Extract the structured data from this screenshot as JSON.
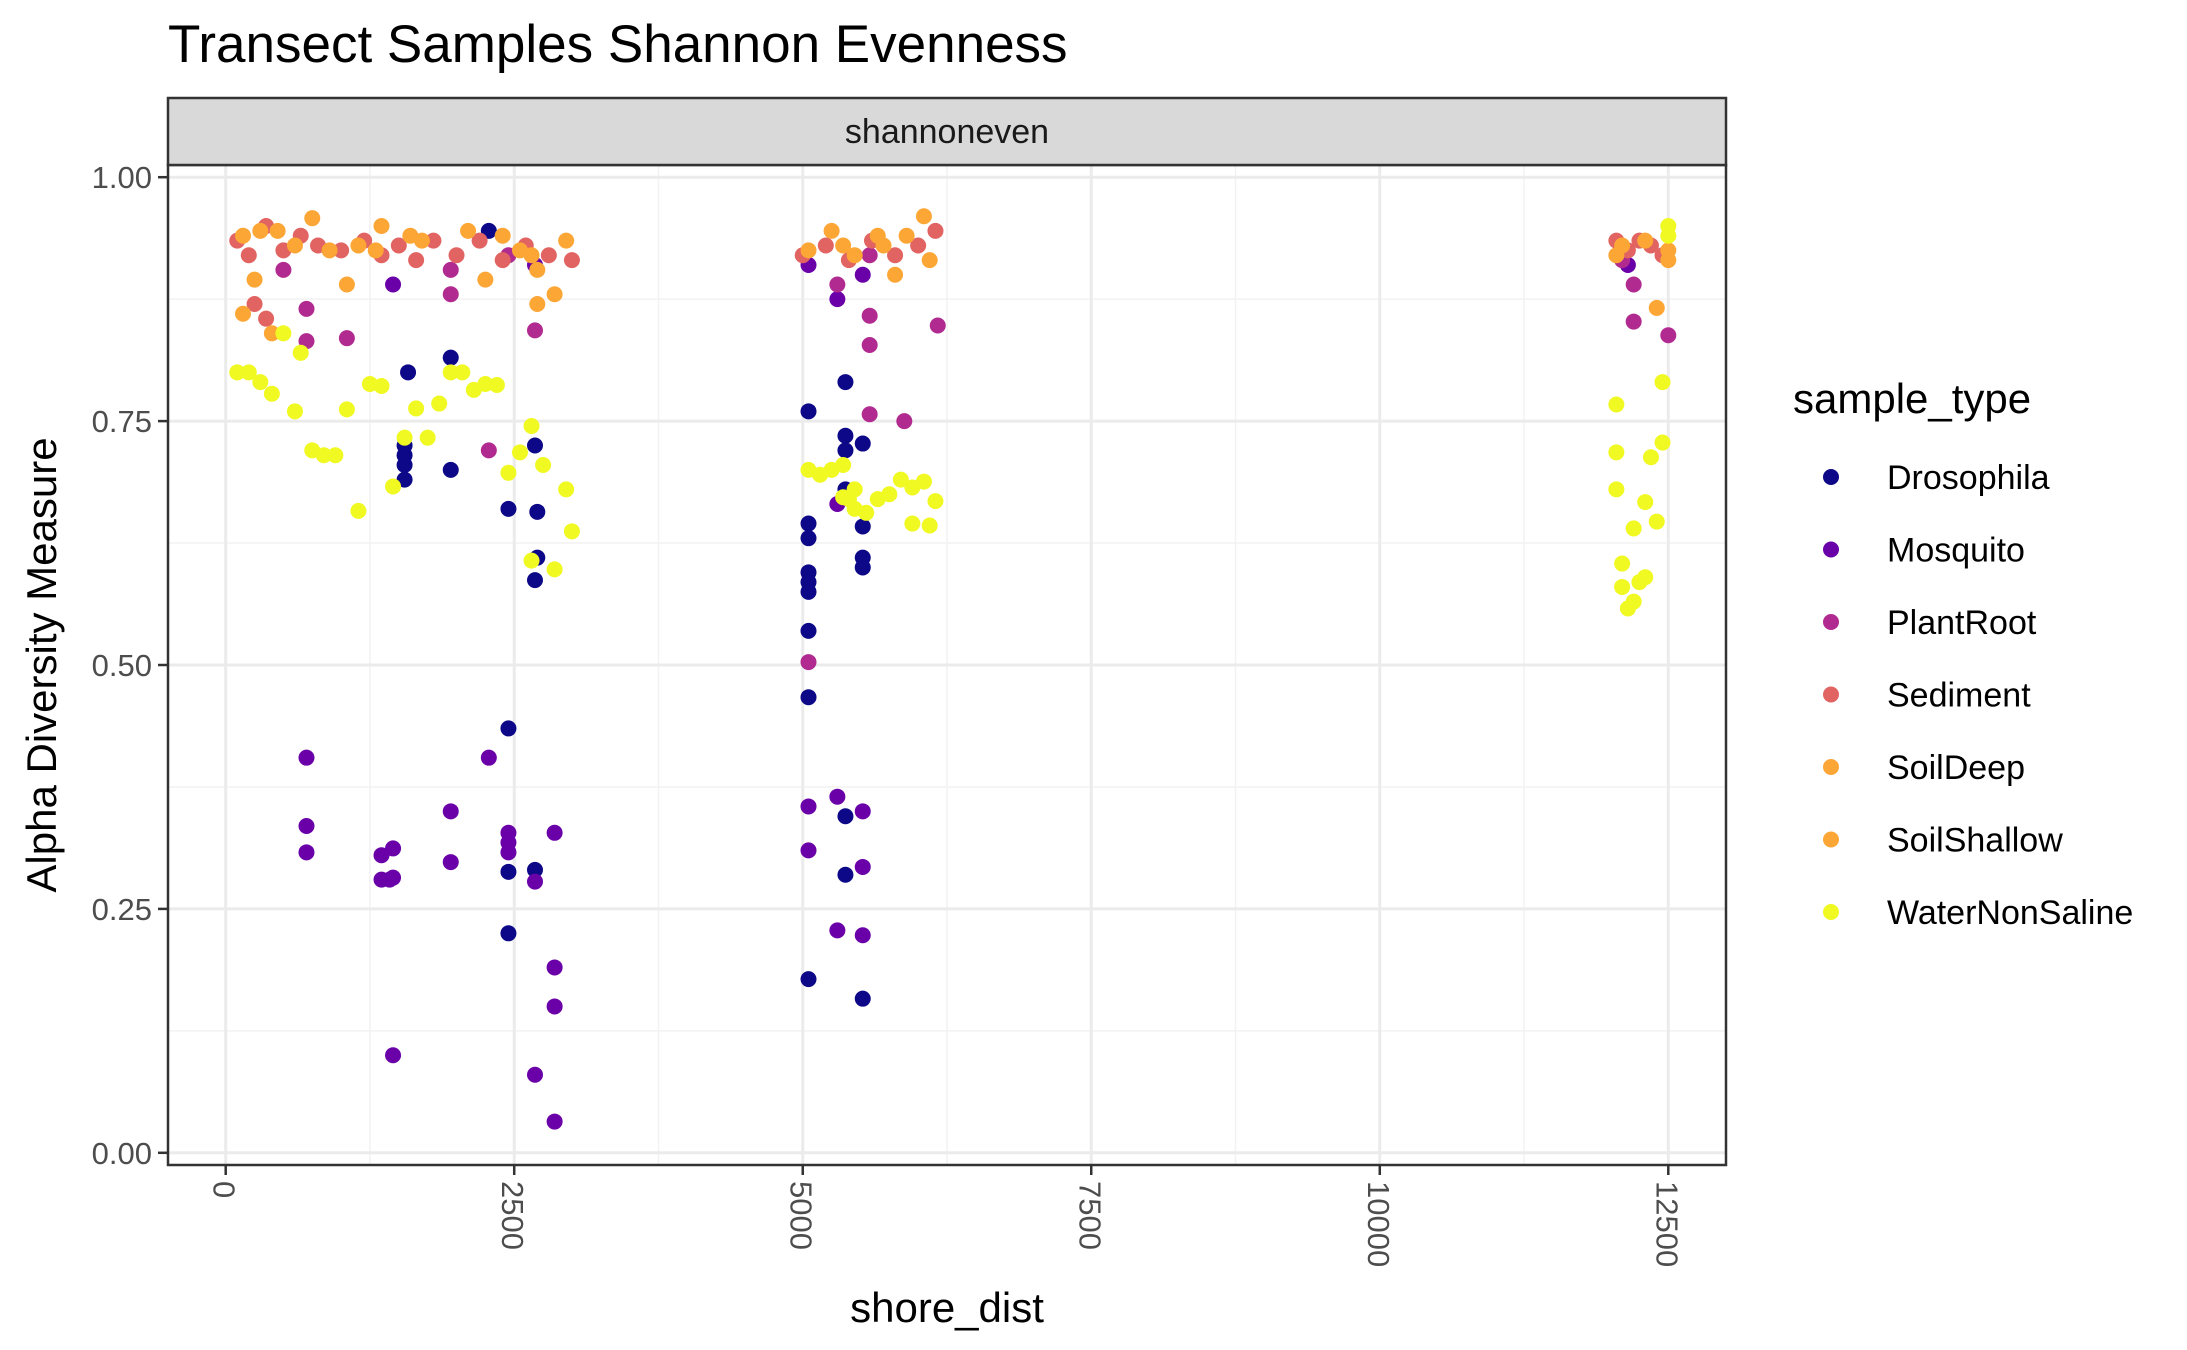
{
  "chart_data": {
    "type": "scatter",
    "title": "Transect Samples Shannon Evenness",
    "facet_label": "shannoneven",
    "xlabel": "shore_dist",
    "ylabel": "Alpha Diversity Measure",
    "xlim": [
      -500,
      13000
    ],
    "ylim": [
      -0.0125,
      1.0125
    ],
    "x_ticks": [
      0,
      2500,
      5000,
      7500,
      10000,
      12500
    ],
    "x_tick_labels": [
      "0",
      "2500",
      "5000",
      "7500",
      "10000",
      "12500"
    ],
    "y_ticks": [
      0,
      0.25,
      0.5,
      0.75,
      1.0
    ],
    "y_tick_labels": [
      "0.00",
      "0.25",
      "0.50",
      "0.75",
      "1.00"
    ],
    "grid": true,
    "legend": {
      "title": "sample_type",
      "position": "right"
    },
    "series": [
      {
        "name": "Drosophila",
        "color": "#0d0887",
        "points": [
          [
            1580,
            0.8
          ],
          [
            1950,
            0.815
          ],
          [
            1550,
            0.725
          ],
          [
            1550,
            0.715
          ],
          [
            1550,
            0.705
          ],
          [
            1550,
            0.69
          ],
          [
            1950,
            0.7
          ],
          [
            2450,
            0.66
          ],
          [
            2680,
            0.725
          ],
          [
            2700,
            0.657
          ],
          [
            2700,
            0.61
          ],
          [
            2680,
            0.587
          ],
          [
            2450,
            0.435
          ],
          [
            2450,
            0.288
          ],
          [
            2680,
            0.29
          ],
          [
            2450,
            0.225
          ],
          [
            5050,
            0.76
          ],
          [
            5050,
            0.645
          ],
          [
            5050,
            0.63
          ],
          [
            5050,
            0.595
          ],
          [
            5050,
            0.585
          ],
          [
            5050,
            0.575
          ],
          [
            5050,
            0.535
          ],
          [
            5050,
            0.467
          ],
          [
            5050,
            0.178
          ],
          [
            5370,
            0.79
          ],
          [
            5370,
            0.735
          ],
          [
            5370,
            0.72
          ],
          [
            5370,
            0.68
          ],
          [
            5520,
            0.727
          ],
          [
            5520,
            0.642
          ],
          [
            5520,
            0.61
          ],
          [
            5520,
            0.6
          ],
          [
            5370,
            0.345
          ],
          [
            5370,
            0.285
          ],
          [
            5520,
            0.158
          ],
          [
            2280,
            0.945
          ]
        ]
      },
      {
        "name": "Mosquito",
        "color": "#6a00a8",
        "points": [
          [
            700,
            0.405
          ],
          [
            700,
            0.335
          ],
          [
            700,
            0.308
          ],
          [
            1350,
            0.305
          ],
          [
            1350,
            0.28
          ],
          [
            1450,
            0.312
          ],
          [
            1450,
            0.282
          ],
          [
            1420,
            0.28
          ],
          [
            1450,
            0.1
          ],
          [
            1950,
            0.35
          ],
          [
            1950,
            0.298
          ],
          [
            2280,
            0.405
          ],
          [
            2450,
            0.328
          ],
          [
            2450,
            0.318
          ],
          [
            2450,
            0.308
          ],
          [
            2680,
            0.278
          ],
          [
            2850,
            0.328
          ],
          [
            2850,
            0.19
          ],
          [
            2850,
            0.15
          ],
          [
            2680,
            0.08
          ],
          [
            2850,
            0.032
          ],
          [
            5050,
            0.355
          ],
          [
            5050,
            0.31
          ],
          [
            5300,
            0.365
          ],
          [
            5300,
            0.228
          ],
          [
            5520,
            0.35
          ],
          [
            5520,
            0.293
          ],
          [
            5520,
            0.223
          ],
          [
            1450,
            0.89
          ],
          [
            2680,
            0.91
          ],
          [
            5050,
            0.91
          ],
          [
            5300,
            0.875
          ],
          [
            5520,
            0.9
          ],
          [
            5300,
            0.665
          ],
          [
            12150,
            0.91
          ]
        ]
      },
      {
        "name": "PlantRoot",
        "color": "#b12a90",
        "points": [
          [
            700,
            0.865
          ],
          [
            700,
            0.832
          ],
          [
            1050,
            0.835
          ],
          [
            1950,
            0.88
          ],
          [
            2680,
            0.843
          ],
          [
            2280,
            0.72
          ],
          [
            5050,
            0.503
          ],
          [
            5580,
            0.858
          ],
          [
            5580,
            0.828
          ],
          [
            5580,
            0.757
          ],
          [
            5880,
            0.75
          ],
          [
            6170,
            0.848
          ],
          [
            12200,
            0.852
          ],
          [
            12200,
            0.89
          ],
          [
            12500,
            0.838
          ],
          [
            500,
            0.905
          ],
          [
            1950,
            0.905
          ],
          [
            2450,
            0.92
          ],
          [
            5300,
            0.89
          ],
          [
            5580,
            0.92
          ],
          [
            12100,
            0.915
          ]
        ]
      },
      {
        "name": "Sediment",
        "color": "#e16462",
        "points": [
          [
            100,
            0.935
          ],
          [
            200,
            0.92
          ],
          [
            350,
            0.95
          ],
          [
            500,
            0.925
          ],
          [
            650,
            0.94
          ],
          [
            800,
            0.93
          ],
          [
            1000,
            0.925
          ],
          [
            1200,
            0.935
          ],
          [
            1350,
            0.92
          ],
          [
            1500,
            0.93
          ],
          [
            1650,
            0.915
          ],
          [
            1800,
            0.935
          ],
          [
            2000,
            0.92
          ],
          [
            2200,
            0.935
          ],
          [
            2400,
            0.915
          ],
          [
            2600,
            0.93
          ],
          [
            2800,
            0.92
          ],
          [
            3000,
            0.915
          ],
          [
            250,
            0.87
          ],
          [
            350,
            0.855
          ],
          [
            5000,
            0.92
          ],
          [
            5200,
            0.93
          ],
          [
            5400,
            0.915
          ],
          [
            5600,
            0.935
          ],
          [
            5800,
            0.92
          ],
          [
            6000,
            0.93
          ],
          [
            6150,
            0.945
          ],
          [
            12050,
            0.935
          ],
          [
            12150,
            0.925
          ],
          [
            12250,
            0.935
          ],
          [
            12350,
            0.93
          ],
          [
            12450,
            0.92
          ]
        ]
      },
      {
        "name": "SoilDeep",
        "color": "#fca636",
        "points": [
          [
            750,
            0.958
          ],
          [
            1350,
            0.95
          ],
          [
            250,
            0.895
          ],
          [
            1050,
            0.89
          ],
          [
            2250,
            0.895
          ],
          [
            2700,
            0.87
          ],
          [
            2850,
            0.88
          ],
          [
            150,
            0.86
          ],
          [
            5900,
            0.94
          ],
          [
            6100,
            0.915
          ],
          [
            5700,
            0.93
          ],
          [
            12400,
            0.866
          ],
          [
            12500,
            0.915
          ],
          [
            12100,
            0.93
          ],
          [
            450,
            0.945
          ],
          [
            1600,
            0.94
          ],
          [
            2550,
            0.925
          ],
          [
            5350,
            0.93
          ]
        ]
      },
      {
        "name": "SoilShallow",
        "color": "#fca636",
        "points": [
          [
            150,
            0.94
          ],
          [
            300,
            0.945
          ],
          [
            600,
            0.93
          ],
          [
            900,
            0.925
          ],
          [
            1150,
            0.93
          ],
          [
            1300,
            0.925
          ],
          [
            1700,
            0.935
          ],
          [
            2100,
            0.945
          ],
          [
            2400,
            0.94
          ],
          [
            2650,
            0.92
          ],
          [
            2950,
            0.935
          ],
          [
            400,
            0.84
          ],
          [
            2700,
            0.905
          ],
          [
            5050,
            0.925
          ],
          [
            5250,
            0.945
          ],
          [
            5450,
            0.92
          ],
          [
            5650,
            0.94
          ],
          [
            5800,
            0.9
          ],
          [
            6050,
            0.96
          ],
          [
            12050,
            0.92
          ],
          [
            12300,
            0.935
          ],
          [
            12500,
            0.925
          ]
        ]
      },
      {
        "name": "WaterNonSaline",
        "color": "#f0f921",
        "points": [
          [
            100,
            0.8
          ],
          [
            200,
            0.8
          ],
          [
            300,
            0.79
          ],
          [
            400,
            0.778
          ],
          [
            500,
            0.84
          ],
          [
            600,
            0.76
          ],
          [
            650,
            0.82
          ],
          [
            750,
            0.72
          ],
          [
            850,
            0.715
          ],
          [
            950,
            0.715
          ],
          [
            1050,
            0.762
          ],
          [
            1150,
            0.658
          ],
          [
            1250,
            0.788
          ],
          [
            1350,
            0.786
          ],
          [
            1450,
            0.683
          ],
          [
            1550,
            0.733
          ],
          [
            1650,
            0.763
          ],
          [
            1750,
            0.733
          ],
          [
            1850,
            0.768
          ],
          [
            1950,
            0.8
          ],
          [
            2050,
            0.8
          ],
          [
            2150,
            0.782
          ],
          [
            2250,
            0.788
          ],
          [
            2350,
            0.787
          ],
          [
            2450,
            0.697
          ],
          [
            2550,
            0.718
          ],
          [
            2650,
            0.745
          ],
          [
            2750,
            0.705
          ],
          [
            2850,
            0.598
          ],
          [
            2950,
            0.68
          ],
          [
            3000,
            0.637
          ],
          [
            2650,
            0.607
          ],
          [
            5050,
            0.7
          ],
          [
            5150,
            0.695
          ],
          [
            5250,
            0.7
          ],
          [
            5350,
            0.705
          ],
          [
            5400,
            0.67
          ],
          [
            5450,
            0.66
          ],
          [
            5550,
            0.656
          ],
          [
            5650,
            0.67
          ],
          [
            5750,
            0.675
          ],
          [
            5850,
            0.69
          ],
          [
            5950,
            0.682
          ],
          [
            6050,
            0.688
          ],
          [
            6150,
            0.668
          ],
          [
            5950,
            0.645
          ],
          [
            6100,
            0.643
          ],
          [
            5450,
            0.68
          ],
          [
            5350,
            0.672
          ],
          [
            12050,
            0.767
          ],
          [
            12050,
            0.718
          ],
          [
            12050,
            0.68
          ],
          [
            12100,
            0.604
          ],
          [
            12100,
            0.58
          ],
          [
            12150,
            0.558
          ],
          [
            12200,
            0.565
          ],
          [
            12200,
            0.64
          ],
          [
            12250,
            0.585
          ],
          [
            12300,
            0.59
          ],
          [
            12300,
            0.667
          ],
          [
            12350,
            0.713
          ],
          [
            12400,
            0.647
          ],
          [
            12450,
            0.79
          ],
          [
            12450,
            0.728
          ],
          [
            12500,
            0.95
          ],
          [
            12500,
            0.94
          ]
        ]
      }
    ]
  }
}
